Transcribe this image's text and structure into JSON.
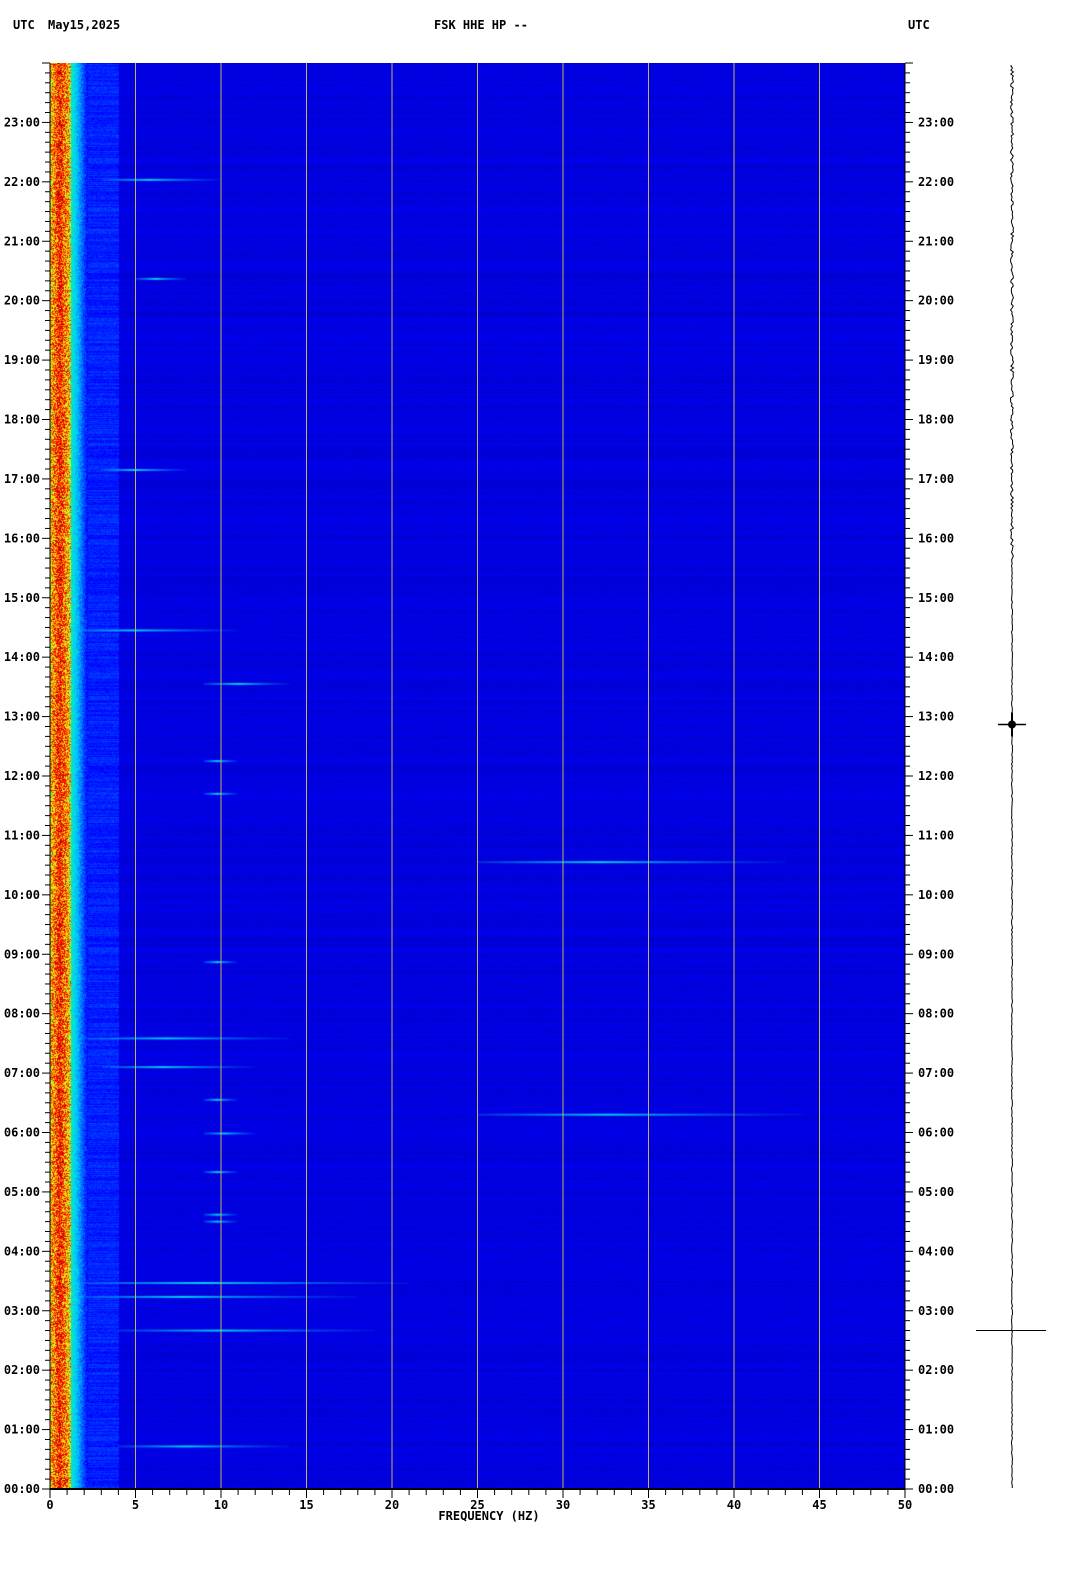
{
  "header": {
    "left_tz": "UTC",
    "date": "May15,2025",
    "station": "FSK HHE HP --",
    "right_tz": "UTC"
  },
  "footer_mark": "",
  "chart_data": {
    "type": "heatmap",
    "title": "FSK HHE HP --",
    "xlabel": "FREQUENCY (HZ)",
    "ylabel": "",
    "xlim": [
      0,
      50
    ],
    "ylim": [
      "00:00",
      "24:00"
    ],
    "x_ticks": [
      "0",
      "5",
      "10",
      "15",
      "20",
      "25",
      "30",
      "35",
      "40",
      "45",
      "50"
    ],
    "y_ticks": [
      "00:00",
      "01:00",
      "02:00",
      "03:00",
      "04:00",
      "05:00",
      "06:00",
      "07:00",
      "08:00",
      "09:00",
      "10:00",
      "11:00",
      "12:00",
      "13:00",
      "14:00",
      "15:00",
      "16:00",
      "17:00",
      "18:00",
      "19:00",
      "20:00",
      "21:00",
      "22:00",
      "23:00"
    ],
    "grid_x": true,
    "colormap": [
      "#00008c",
      "#0000ff",
      "#00c8ff",
      "#00ffa0",
      "#ffff00",
      "#ff0000",
      "#a00000"
    ],
    "background_color": "#0a0a9e",
    "gridline_color": "#c8b060",
    "dominant_band_hz": [
      0.2,
      1.0
    ],
    "events": [
      {
        "time": "00:43",
        "fmin": 4,
        "fmax": 14
      },
      {
        "time": "02:40",
        "fmin": 4,
        "fmax": 19
      },
      {
        "time": "03:14",
        "fmin": 1,
        "fmax": 18
      },
      {
        "time": "03:28",
        "fmin": 1,
        "fmax": 21
      },
      {
        "time": "04:30",
        "fmin": 9,
        "fmax": 11
      },
      {
        "time": "04:37",
        "fmin": 9,
        "fmax": 11
      },
      {
        "time": "05:20",
        "fmin": 9,
        "fmax": 11
      },
      {
        "time": "05:59",
        "fmin": 9,
        "fmax": 12
      },
      {
        "time": "06:18",
        "fmin": 25,
        "fmax": 44
      },
      {
        "time": "06:33",
        "fmin": 9,
        "fmax": 11
      },
      {
        "time": "07:06",
        "fmin": 3,
        "fmax": 12
      },
      {
        "time": "07:35",
        "fmin": 2,
        "fmax": 14
      },
      {
        "time": "08:52",
        "fmin": 9,
        "fmax": 11
      },
      {
        "time": "10:33",
        "fmin": 25,
        "fmax": 43
      },
      {
        "time": "11:42",
        "fmin": 9,
        "fmax": 11
      },
      {
        "time": "12:15",
        "fmin": 9,
        "fmax": 11
      },
      {
        "time": "13:33",
        "fmin": 9,
        "fmax": 14
      },
      {
        "time": "14:27",
        "fmin": 1,
        "fmax": 11
      },
      {
        "time": "17:09",
        "fmin": 3,
        "fmax": 8
      },
      {
        "time": "20:22",
        "fmin": 5,
        "fmax": 8
      },
      {
        "time": "22:02",
        "fmin": 3,
        "fmax": 10
      }
    ],
    "trace_events": [
      "12:52",
      "02:40"
    ]
  }
}
